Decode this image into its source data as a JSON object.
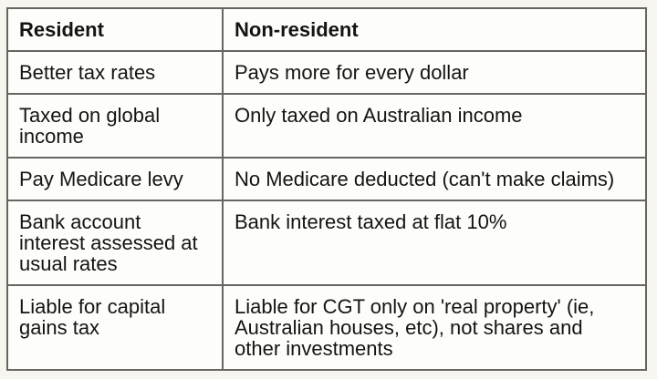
{
  "page": {
    "background_color": "#f6f5f0",
    "table_border_color": "#67665e",
    "cell_background_color": "#fdfdfb",
    "text_color": "#151413"
  },
  "table": {
    "headers": [
      "Resident",
      "Non-resident"
    ],
    "rows": [
      {
        "resident": "Better tax rates",
        "nonresident": "Pays more for every dollar"
      },
      {
        "resident": "Taxed on global\nincome",
        "nonresident": "Only taxed on Australian income"
      },
      {
        "resident": "Pay Medicare levy",
        "nonresident": "No Medicare deducted (can't make claims)"
      },
      {
        "resident": "Bank account\ninterest assessed at\nusual rates",
        "nonresident": "Bank interest taxed at flat 10%"
      },
      {
        "resident": "Liable for capital\ngains tax",
        "nonresident": "Liable for CGT only on 'real property' (ie,\nAustralian houses, etc), not shares and\nother investments"
      }
    ]
  }
}
